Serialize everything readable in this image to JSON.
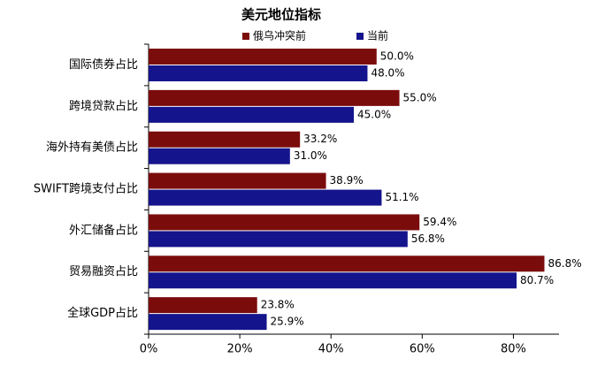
{
  "chart_data": {
    "type": "hbar",
    "title": "美元地位指标",
    "categories": [
      "国际债券占比",
      "跨境贷款占比",
      "海外持有美债占比",
      "SWIFT跨境支付占比",
      "外汇储备占比",
      "贸易融资占比",
      "全球GDP占比"
    ],
    "series": [
      {
        "name": "俄乌冲突前",
        "color": "#7b0c0c",
        "values": [
          50.0,
          55.0,
          33.2,
          38.9,
          59.4,
          86.8,
          23.8
        ],
        "value_labels": [
          "50.0%",
          "55.0%",
          "33.2%",
          "38.9%",
          "59.4%",
          "86.8%",
          "23.8%"
        ]
      },
      {
        "name": "当前",
        "color": "#14148c",
        "values": [
          48.0,
          45.0,
          31.0,
          51.1,
          56.8,
          80.7,
          25.9
        ],
        "value_labels": [
          "48.0%",
          "45.0%",
          "31.0%",
          "51.1%",
          "56.8%",
          "80.7%",
          "25.9%"
        ]
      }
    ],
    "xlim": [
      0,
      90
    ],
    "xticks": [
      {
        "value": 0,
        "label": "0%"
      },
      {
        "value": 20,
        "label": "20%"
      },
      {
        "value": 40,
        "label": "40%"
      },
      {
        "value": 60,
        "label": "60%"
      },
      {
        "value": 80,
        "label": "80%"
      }
    ]
  }
}
